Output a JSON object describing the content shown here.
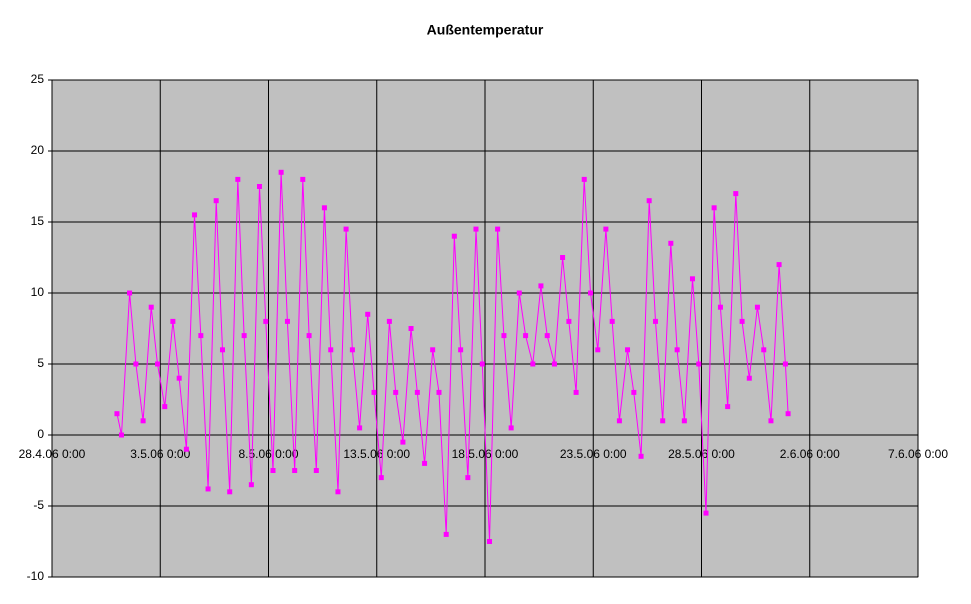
{
  "chart_data": {
    "type": "line",
    "title": "Außentemperatur",
    "xlim": [
      "28.4.06 0:00",
      "7.6.06 0:00"
    ],
    "xticks": [
      "28.4.06 0:00",
      "3.5.06 0:00",
      "8.5.06 0:00",
      "13.5.06 0:00",
      "18.5.06 0:00",
      "23.5.06 0:00",
      "28.5.06 0:00",
      "2.6.06 0:00",
      "7.6.06 0:00"
    ],
    "ylim": [
      -10,
      25
    ],
    "yticks": [
      25,
      20,
      15,
      10,
      5,
      0,
      -5,
      -10
    ],
    "grid": true,
    "background": "#c0c0c0",
    "x": [
      "1.5.06 0:00",
      "1.5.06 5:00",
      "1.5.06 14:00",
      "1.5.06 21:00",
      "2.5.06 5:00",
      "2.5.06 14:00",
      "2.5.06 21:00",
      "3.5.06 5:00",
      "3.5.06 14:00",
      "3.5.06 21:00",
      "4.5.06 5:00",
      "4.5.06 14:00",
      "4.5.06 21:00",
      "5.5.06 5:00",
      "5.5.06 14:00",
      "5.5.06 21:00",
      "6.5.06 5:00",
      "6.5.06 14:00",
      "6.5.06 21:00",
      "7.5.06 5:00",
      "7.5.06 14:00",
      "7.5.06 21:00",
      "8.5.06 5:00",
      "8.5.06 14:00",
      "8.5.06 21:00",
      "9.5.06 5:00",
      "9.5.06 14:00",
      "9.5.06 21:00",
      "10.5.06 5:00",
      "10.5.06 14:00",
      "10.5.06 21:00",
      "11.5.06 5:00",
      "11.5.06 14:00",
      "11.5.06 21:00",
      "12.5.06 5:00",
      "12.5.06 14:00",
      "12.5.06 21:00",
      "13.5.06 5:00",
      "13.5.06 14:00",
      "13.5.06 21:00",
      "14.5.06 5:00",
      "14.5.06 14:00",
      "14.5.06 21:00",
      "15.5.06 5:00",
      "15.5.06 14:00",
      "15.5.06 21:00",
      "16.5.06 5:00",
      "16.5.06 14:00",
      "16.5.06 21:00",
      "17.5.06 5:00",
      "17.5.06 14:00",
      "17.5.06 21:00",
      "18.5.06 5:00",
      "18.5.06 14:00",
      "18.5.06 21:00",
      "19.5.06 5:00",
      "19.5.06 14:00",
      "19.5.06 21:00",
      "20.5.06 5:00",
      "20.5.06 14:00",
      "20.5.06 21:00",
      "21.5.06 5:00",
      "21.5.06 14:00",
      "21.5.06 21:00",
      "22.5.06 5:00",
      "22.5.06 14:00",
      "22.5.06 21:00",
      "23.5.06 5:00",
      "23.5.06 14:00",
      "23.5.06 21:00",
      "24.5.06 5:00",
      "24.5.06 14:00",
      "24.5.06 21:00",
      "25.5.06 5:00",
      "25.5.06 14:00",
      "25.5.06 21:00",
      "26.5.06 5:00",
      "26.5.06 14:00",
      "26.5.06 21:00",
      "27.5.06 5:00",
      "27.5.06 14:00",
      "27.5.06 21:00",
      "28.5.06 5:00",
      "28.5.06 14:00",
      "28.5.06 21:00",
      "29.5.06 5:00",
      "29.5.06 14:00",
      "29.5.06 21:00",
      "30.5.06 5:00",
      "30.5.06 14:00",
      "30.5.06 21:00",
      "31.5.06 5:00",
      "31.5.06 14:00",
      "31.5.06 21:00",
      "1.6.06 0:00"
    ],
    "series": [
      {
        "name": "Außentemperatur",
        "color": "#ff00ff",
        "values": [
          1.5,
          0,
          10,
          5,
          1,
          9,
          5,
          2,
          8,
          4,
          -1,
          15.5,
          7,
          -3.8,
          16.5,
          6,
          -4,
          18,
          7,
          -3.5,
          17.5,
          8,
          -2.5,
          18.5,
          8,
          -2.5,
          18,
          7,
          -2.5,
          16,
          6,
          -4,
          14.5,
          6,
          0.5,
          8.5,
          3,
          -3,
          8,
          3,
          -0.5,
          7.5,
          3,
          -2,
          6,
          3,
          -7,
          14,
          6,
          -3,
          14.5,
          5,
          -7.5,
          14.5,
          7,
          0.5,
          10,
          7,
          5,
          10.5,
          7,
          5,
          12.5,
          8,
          3,
          18,
          10,
          6,
          14.5,
          8,
          1,
          6,
          3,
          -1.5,
          16.5,
          8,
          1,
          13.5,
          6,
          1,
          11,
          5,
          -5.5,
          16,
          9,
          2,
          17,
          8,
          4,
          9,
          6,
          1,
          12,
          5,
          1.5
        ]
      }
    ]
  }
}
